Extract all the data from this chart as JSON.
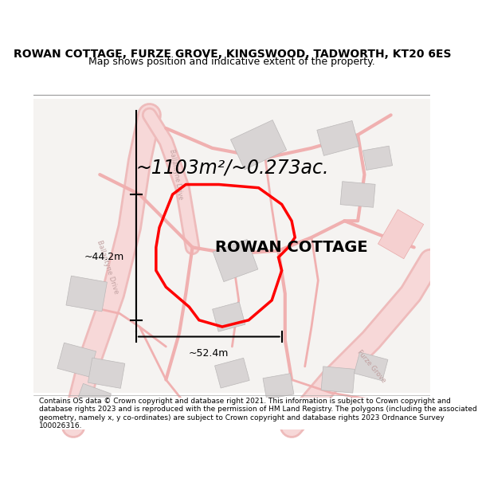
{
  "title": "ROWAN COTTAGE, FURZE GROVE, KINGSWOOD, TADWORTH, KT20 6ES",
  "subtitle": "Map shows position and indicative extent of the property.",
  "area_text": "~1103m²/~0.273ac.",
  "property_label": "ROWAN COTTAGE",
  "dim_height": "~44.2m",
  "dim_width": "~52.4m",
  "footer": "Contains OS data © Crown copyright and database right 2021. This information is subject to Crown copyright and database rights 2023 and is reproduced with the permission of HM Land Registry. The polygons (including the associated geometry, namely x, y co-ordinates) are subject to Crown copyright and database rights 2023 Ordnance Survey 100026316.",
  "background_color": "#ffffff",
  "map_bg": "#f7f4f4",
  "road_color_light": "#f5b8b8",
  "road_color_outline": "#e88888",
  "building_color": "#d4d0d0",
  "building_edge": "#b0acac",
  "plot_color": "#ff0000",
  "title_fontsize": 10,
  "subtitle_fontsize": 9,
  "area_fontsize": 17,
  "label_fontsize": 14,
  "footer_fontsize": 6.5
}
